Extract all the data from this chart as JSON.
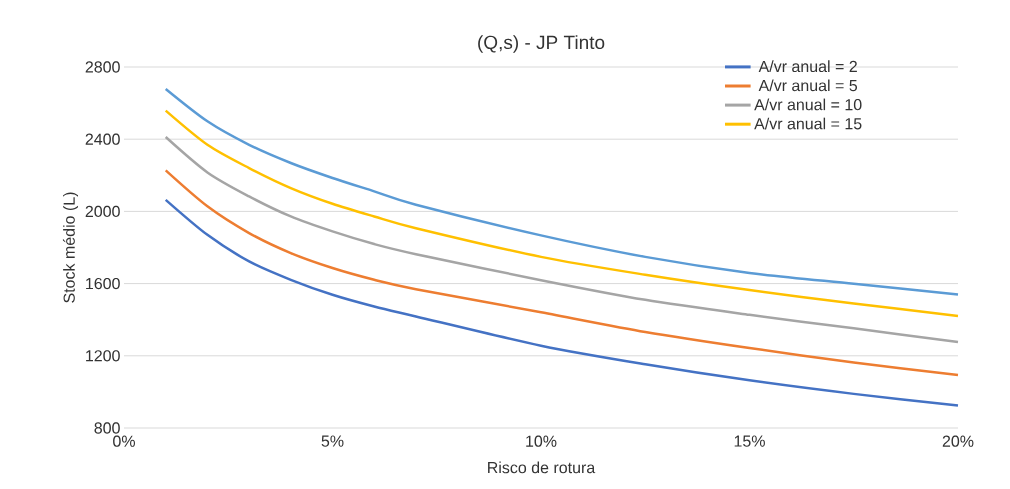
{
  "chart_data": {
    "type": "line",
    "title": "(Q,s) - JP Tinto",
    "xlabel": "Risco de rotura",
    "ylabel": "Stock médio (L)",
    "x": [
      1,
      2,
      3,
      4,
      5,
      6,
      7,
      10,
      12.5,
      15,
      17.5,
      20
    ],
    "series": [
      {
        "name": "A/vr anual = 2",
        "color": "#4472c4",
        "values": [
          2064,
          1870,
          1723,
          1621,
          1538,
          1473,
          1418,
          1256,
          1153,
          1064,
          989,
          925
        ]
      },
      {
        "name": "A/vr anual = 5",
        "color": "#ed7d31",
        "values": [
          2227,
          2028,
          1880,
          1769,
          1686,
          1621,
          1569,
          1441,
          1332,
          1243,
          1163,
          1094
        ]
      },
      {
        "name": "A/vr anual = 10",
        "color": "#a5a5a5",
        "values": [
          2412,
          2216,
          2083,
          1972,
          1889,
          1819,
          1763,
          1619,
          1510,
          1427,
          1352,
          1276
        ]
      },
      {
        "name": "A/vr anual = 15",
        "color": "#ffc000",
        "values": [
          2558,
          2369,
          2240,
          2129,
          2042,
          1972,
          1907,
          1748,
          1649,
          1564,
          1490,
          1421
        ]
      },
      {
        "color": "#5b9bd5",
        "values": [
          2678,
          2499,
          2369,
          2268,
          2185,
          2111,
          2037,
          1867,
          1748,
          1659,
          1599,
          1540
        ]
      }
    ],
    "xlim": [
      0,
      20
    ],
    "ylim": [
      800,
      2800
    ],
    "xticks": [
      {
        "value": 0,
        "label": "0%"
      },
      {
        "value": 5,
        "label": "5%"
      },
      {
        "value": 10,
        "label": "10%"
      },
      {
        "value": 15,
        "label": "15%"
      },
      {
        "value": 20,
        "label": "20%"
      }
    ],
    "yticks": [
      800,
      1200,
      1600,
      2000,
      2400,
      2800
    ],
    "grid": "y",
    "legend": "top right",
    "marker": "none",
    "line_style": "solid"
  }
}
